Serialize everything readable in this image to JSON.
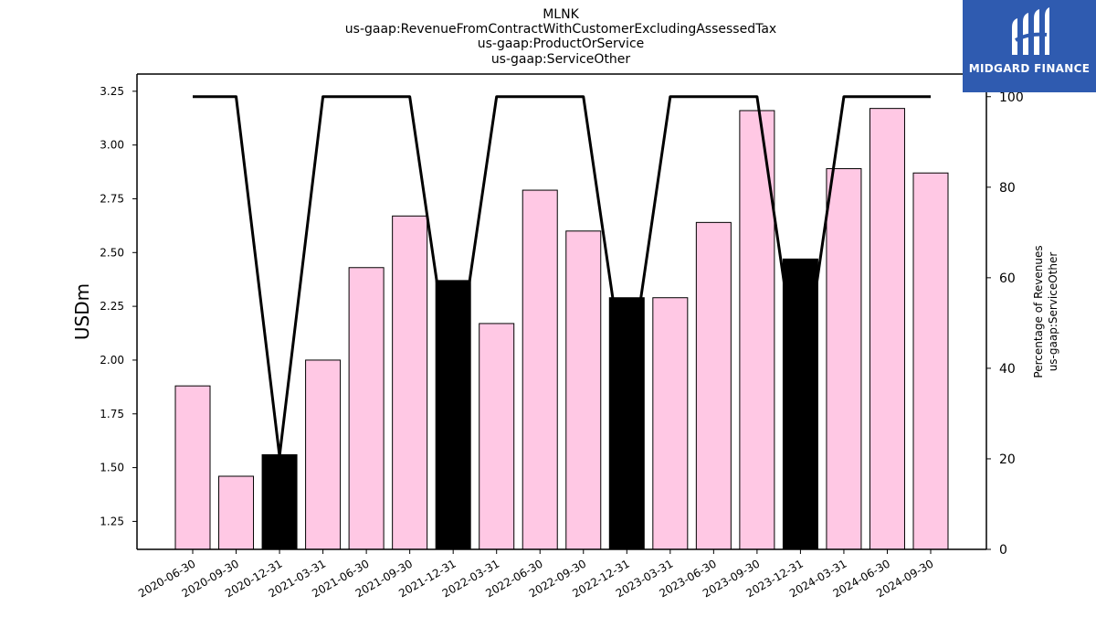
{
  "chart_data": {
    "type": "bar",
    "title_lines": [
      "MLNK",
      "us-gaap:RevenueFromContractWithCustomerExcludingAssessedTax",
      "us-gaap:ProductOrService",
      "us-gaap:ServiceOther"
    ],
    "ylabel": "USDm",
    "y2label_lines": [
      "Percentage of Revenues",
      "us-gaap:ServiceOther"
    ],
    "categories": [
      "2020-06-30",
      "2020-09-30",
      "2020-12-31",
      "2021-03-31",
      "2021-06-30",
      "2021-09-30",
      "2021-12-31",
      "2022-03-31",
      "2022-06-30",
      "2022-09-30",
      "2022-12-31",
      "2023-03-31",
      "2023-06-30",
      "2023-09-30",
      "2023-12-31",
      "2024-03-31",
      "2024-06-30",
      "2024-09-30"
    ],
    "values": [
      1.88,
      1.46,
      1.56,
      2.0,
      2.43,
      2.67,
      2.37,
      2.17,
      2.79,
      2.6,
      2.29,
      2.29,
      2.64,
      3.16,
      2.47,
      2.89,
      3.17,
      2.87
    ],
    "bar_colors": [
      "#ffc8e4",
      "#ffc8e4",
      "#000000",
      "#ffc8e4",
      "#ffc8e4",
      "#ffc8e4",
      "#000000",
      "#ffc8e4",
      "#ffc8e4",
      "#ffc8e4",
      "#000000",
      "#ffc8e4",
      "#ffc8e4",
      "#ffc8e4",
      "#000000",
      "#ffc8e4",
      "#ffc8e4",
      "#ffc8e4"
    ],
    "percentage_series": [
      100,
      100,
      20.6,
      100,
      100,
      100,
      34.5,
      100,
      100,
      100,
      34.2,
      100,
      100,
      100,
      34.1,
      100,
      100,
      100
    ],
    "ylim": [
      1.12,
      3.33
    ],
    "y_ticks": [
      "1.25",
      "1.50",
      "1.75",
      "2.00",
      "2.25",
      "2.50",
      "2.75",
      "3.00",
      "3.25"
    ],
    "y2lim": [
      0,
      105
    ],
    "y2_ticks": [
      "0",
      "20",
      "40",
      "60",
      "80",
      "100"
    ],
    "grid": false
  },
  "logo": {
    "text": "MIDGARD FINANCE",
    "color": "#2f5bb0"
  }
}
